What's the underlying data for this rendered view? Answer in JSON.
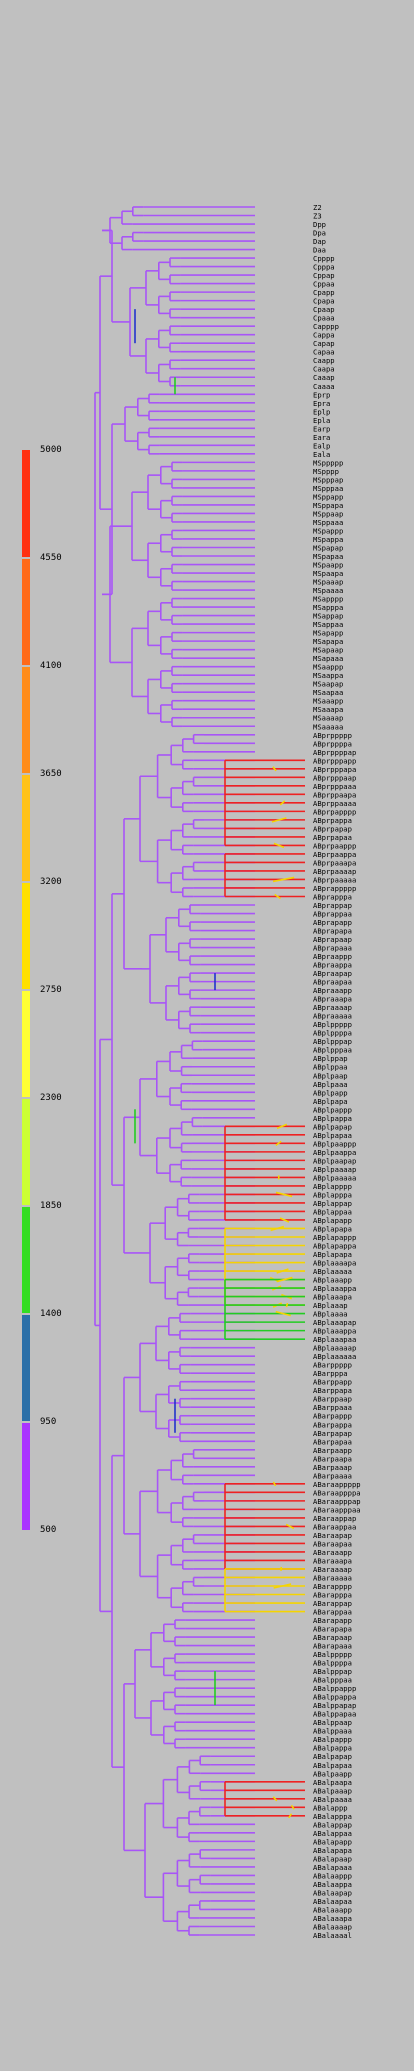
{
  "legend": {
    "ticks": [
      "5000",
      "4550",
      "4100",
      "3650",
      "3200",
      "2750",
      "2300",
      "1850",
      "1400",
      "950",
      "500"
    ],
    "colors": [
      "#ff3010",
      "#ff6a18",
      "#ff8c1a",
      "#ffc21a",
      "#ffe000",
      "#ffff33",
      "#ccff33",
      "#33dd22",
      "#2a6fa8",
      "#aa33ff"
    ]
  },
  "tree_colors": {
    "base": "#a855f7",
    "blue": "#2233cc",
    "green": "#22cc22",
    "yellow": "#f5d400",
    "red": "#ee2222"
  },
  "leaves": [
    "Z2",
    "Z3",
    "Dpp",
    "Dpa",
    "Dap",
    "Daa",
    "Cpppp",
    "Cpppa",
    "Cppap",
    "Cppaa",
    "Cpapp",
    "Cpapa",
    "Cpaap",
    "Cpaaa",
    "Capppp",
    "Cappa",
    "Capap",
    "Capaa",
    "Caapp",
    "Caapa",
    "Caaap",
    "Caaaa",
    "Eprp",
    "Epra",
    "Eplp",
    "Epla",
    "Earp",
    "Eara",
    "Ealp",
    "Eala",
    "MSppppp",
    "MSpppp",
    "MSpppap",
    "MSpppaa",
    "MSppapp",
    "MSppapa",
    "MSppaap",
    "MSppaaa",
    "MSpappp",
    "MSpappa",
    "MSpapap",
    "MSpapaa",
    "MSpaapp",
    "MSpaapa",
    "MSpaaap",
    "MSpaaaa",
    "MSapppp",
    "MSapppa",
    "MSappap",
    "MSappaa",
    "MSapapp",
    "MSapapa",
    "MSapaap",
    "MSapaaa",
    "MSaappp",
    "MSaappa",
    "MSaapap",
    "MSaapaa",
    "MSaaapp",
    "MSaaapa",
    "MSaaaap",
    "MSaaaaa",
    "ABprppppp",
    "ABprppppa",
    "ABprppppap",
    "ABprpppapp",
    "ABprpppapa",
    "ABprpppaap",
    "ABprpppaaa",
    "ABprppaapa",
    "ABprppaaaa",
    "ABprpapppp",
    "ABprpappa",
    "ABprpapap",
    "ABprpapaa",
    "ABprpaappp",
    "ABprpaappa",
    "ABprpaaapa",
    "ABprpaaaap",
    "ABprpaaaaa",
    "ABprappppp",
    "ABprapppa",
    "ABprappap",
    "ABprappaa",
    "ABprapapp",
    "ABprapapa",
    "ABprapaap",
    "ABprapaaa",
    "ABpraappp",
    "ABpraappa",
    "ABpraapap",
    "ABpraapaa",
    "ABpraaapp",
    "ABpraaapa",
    "ABpraaaap",
    "ABpraaaaa",
    "ABplppppp",
    "ABplppppa",
    "ABplpppap",
    "ABplpppaa",
    "ABplppap",
    "ABplppaa",
    "ABplpaap",
    "ABplpaaa",
    "ABplpapp",
    "ABplpapa",
    "ABplpappp",
    "ABplpappa",
    "ABplpapap",
    "ABplpapaa",
    "ABplpaappp",
    "ABplpaappa",
    "ABplpaapap",
    "ABplpaaaap",
    "ABplpaaaaa",
    "ABplapppp",
    "ABplapppa",
    "ABplappap",
    "ABplappaa",
    "ABplapapp",
    "ABplapapa",
    "ABplapappp",
    "ABplapappa",
    "ABplapapa",
    "ABplaaaapa",
    "ABplaaaaa",
    "ABplaaapp",
    "ABplaaappa",
    "ABplaaapa",
    "ABplaaap",
    "ABplaaaa",
    "ABplaaapap",
    "ABplaaappa",
    "ABplaaapaa",
    "ABplaaaaap",
    "ABplaaaaaa",
    "ABarppppp",
    "ABarpppa",
    "ABarppapp",
    "ABarppapa",
    "ABarppaap",
    "ABarppaaa",
    "ABarpappp",
    "ABarpappa",
    "ABarpapap",
    "ABarpapaa",
    "ABarpaapp",
    "ABarpaapa",
    "ABarpaaap",
    "ABarpaaaa",
    "ABaraappppp",
    "ABaraappppa",
    "ABaraapppap",
    "ABaraapppaa",
    "ABaraappap",
    "ABaraappaa",
    "ABaraapap",
    "ABaraapaa",
    "ABaraaapp",
    "ABaraaapa",
    "ABaraaaap",
    "ABaraaaaa",
    "ABarapppp",
    "ABarapppa",
    "ABarappap",
    "ABarappaa",
    "ABarapapp",
    "ABarapapa",
    "ABarapaap",
    "ABarapaaa",
    "ABalppppp",
    "ABalppppa",
    "ABalpppap",
    "ABalpppaa",
    "ABalppappp",
    "ABalppappa",
    "ABalppapap",
    "ABalppapaa",
    "ABalppaap",
    "ABalppaaa",
    "ABalpappp",
    "ABalpappa",
    "ABalpapap",
    "ABalpapaa",
    "ABalpaapp",
    "ABalpaapa",
    "ABalpaaap",
    "ABalpaaaa",
    "ABalappp",
    "ABalapppa",
    "ABalappap",
    "ABalappaa",
    "ABalapapp",
    "ABalapapa",
    "ABalapaap",
    "ABalapaaa",
    "ABalaappp",
    "ABalaappa",
    "ABalaapap",
    "ABalaapaa",
    "ABalaaapp",
    "ABalaaapa",
    "ABalaaaap",
    "ABalaaaal"
  ]
}
